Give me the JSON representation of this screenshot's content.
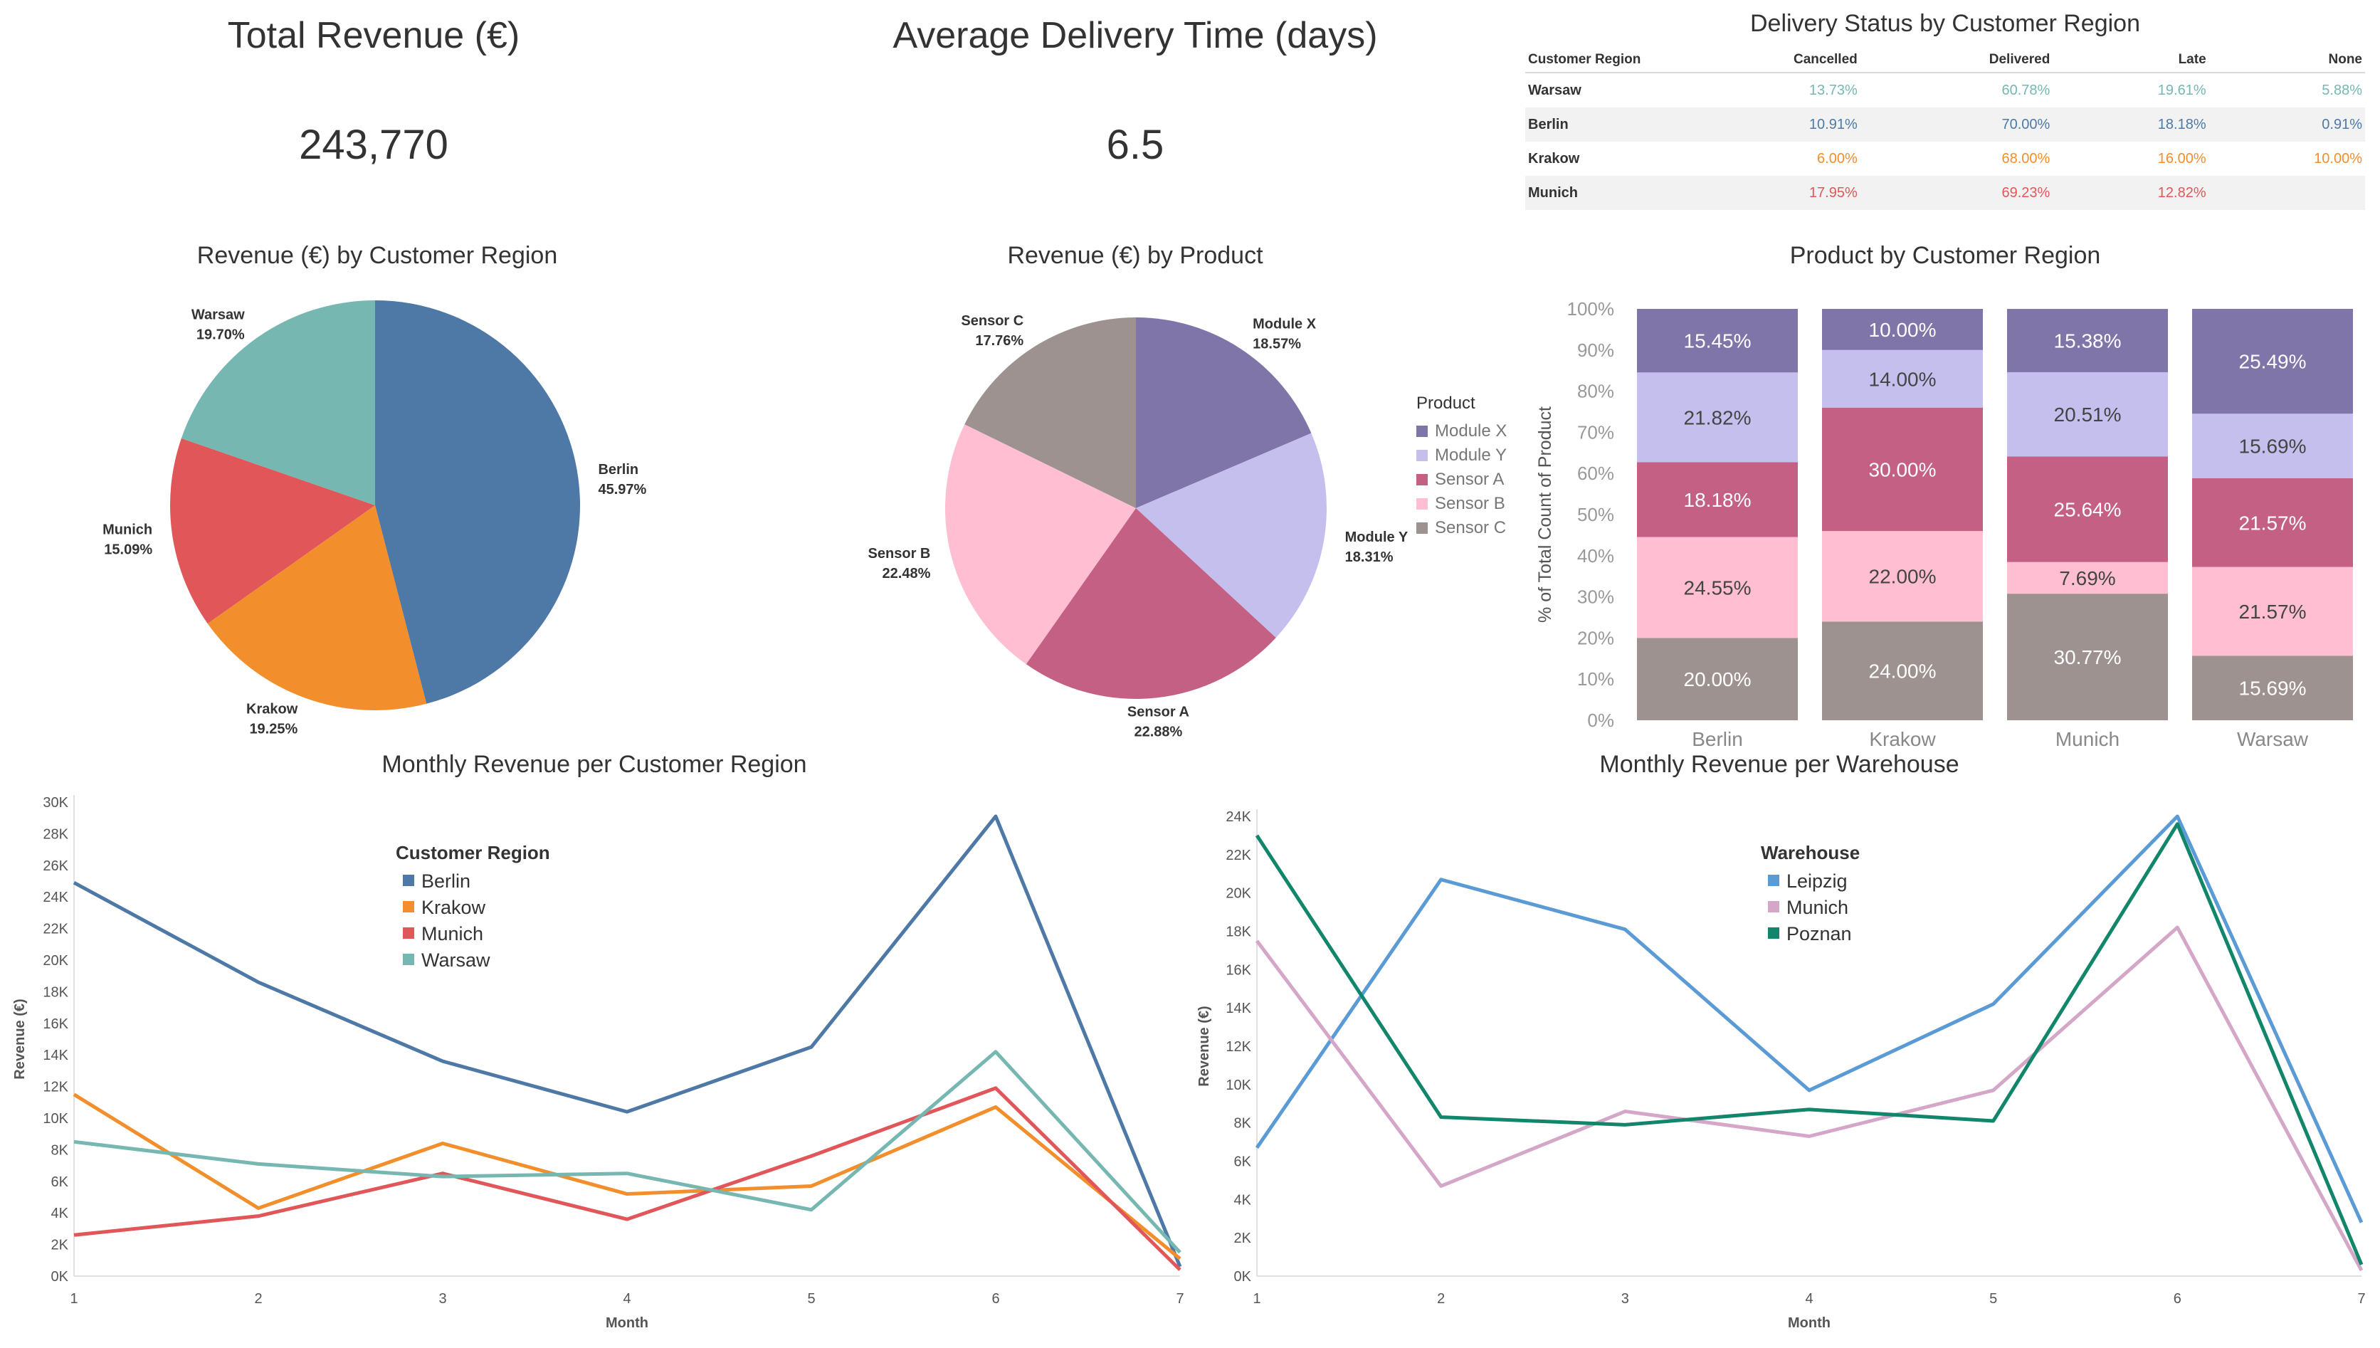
{
  "kpis": {
    "revenue": {
      "title": "Total Revenue (€)",
      "value": "243,770"
    },
    "delivery": {
      "title": "Average Delivery Time (days)",
      "value": "6.5"
    }
  },
  "delivery_table": {
    "title": "Delivery Status by Customer Region",
    "header_first": "Customer Region",
    "columns": [
      "Cancelled",
      "Delivered",
      "Late",
      "None"
    ],
    "rows": [
      {
        "region": "Warsaw",
        "color": "#76b7b2",
        "cells": [
          "13.73%",
          "60.78%",
          "19.61%",
          "5.88%"
        ]
      },
      {
        "region": "Berlin",
        "color": "#4e79a7",
        "cells": [
          "10.91%",
          "70.00%",
          "18.18%",
          "0.91%"
        ]
      },
      {
        "region": "Krakow",
        "color": "#f28e2b",
        "cells": [
          "6.00%",
          "68.00%",
          "16.00%",
          "10.00%"
        ]
      },
      {
        "region": "Munich",
        "color": "#e15759",
        "cells": [
          "17.95%",
          "69.23%",
          "12.82%",
          ""
        ]
      }
    ]
  },
  "chart_data": [
    {
      "id": "pie-region",
      "type": "pie",
      "title": "Revenue (€) by Customer Region",
      "slices": [
        {
          "label": "Berlin",
          "pct_label": "45.97%",
          "value": 45.97,
          "color": "#4e79a7"
        },
        {
          "label": "Krakow",
          "pct_label": "19.25%",
          "value": 19.25,
          "color": "#f28e2b"
        },
        {
          "label": "Munich",
          "pct_label": "15.09%",
          "value": 15.09,
          "color": "#e15759"
        },
        {
          "label": "Warsaw",
          "pct_label": "19.70%",
          "value": 19.7,
          "color": "#76b7b2"
        }
      ]
    },
    {
      "id": "pie-product",
      "type": "pie",
      "title": "Revenue (€) by Product",
      "legend_title": "Product",
      "slices": [
        {
          "label": "Module X",
          "pct_label": "18.57%",
          "value": 18.57,
          "color": "#8075a9"
        },
        {
          "label": "Module Y",
          "pct_label": "18.31%",
          "value": 18.31,
          "color": "#c5bfee"
        },
        {
          "label": "Sensor A",
          "pct_label": "22.88%",
          "value": 22.88,
          "color": "#c46084"
        },
        {
          "label": "Sensor B",
          "pct_label": "22.48%",
          "value": 22.48,
          "color": "#ffbed2"
        },
        {
          "label": "Sensor C",
          "pct_label": "17.76%",
          "value": 17.76,
          "color": "#9d928f"
        }
      ]
    },
    {
      "id": "stacked-product",
      "type": "bar",
      "stacked": true,
      "title": "Product by Customer Region",
      "ylabel": "% of Total Count of Product",
      "categories": [
        "Berlin",
        "Krakow",
        "Munich",
        "Warsaw"
      ],
      "yticks": [
        "0%",
        "10%",
        "20%",
        "30%",
        "40%",
        "50%",
        "60%",
        "70%",
        "80%",
        "90%",
        "100%"
      ],
      "ylim": [
        0,
        100
      ],
      "series": [
        {
          "name": "Sensor C",
          "color": "#9d928f",
          "values": [
            20.0,
            24.0,
            30.77,
            15.69
          ],
          "labels": [
            "20.00%",
            "24.00%",
            "30.77%",
            "15.69%"
          ]
        },
        {
          "name": "Sensor B",
          "color": "#ffbed2",
          "values": [
            24.55,
            22.0,
            7.69,
            21.57
          ],
          "labels": [
            "24.55%",
            "22.00%",
            "7.69%",
            "21.57%"
          ]
        },
        {
          "name": "Sensor A",
          "color": "#c46084",
          "values": [
            18.18,
            30.0,
            25.64,
            21.57
          ],
          "labels": [
            "18.18%",
            "30.00%",
            "25.64%",
            "21.57%"
          ]
        },
        {
          "name": "Module Y",
          "color": "#c5bfee",
          "values": [
            21.82,
            14.0,
            20.51,
            15.69
          ],
          "labels": [
            "21.82%",
            "14.00%",
            "20.51%",
            "15.69%"
          ]
        },
        {
          "name": "Module X",
          "color": "#8075a9",
          "values": [
            15.45,
            10.0,
            15.38,
            25.49
          ],
          "labels": [
            "15.45%",
            "10.00%",
            "15.38%",
            "25.49%"
          ]
        }
      ]
    },
    {
      "id": "line-region",
      "type": "line",
      "title": "Monthly Revenue per Customer Region",
      "xlabel": "Month",
      "ylabel": "Revenue (€)",
      "legend_title": "Customer Region",
      "x": [
        1,
        2,
        3,
        4,
        5,
        6,
        7
      ],
      "ylim": [
        0,
        30000
      ],
      "yticks": [
        {
          "v": 0,
          "t": "0K"
        },
        {
          "v": 2000,
          "t": "2K"
        },
        {
          "v": 4000,
          "t": "4K"
        },
        {
          "v": 6000,
          "t": "6K"
        },
        {
          "v": 8000,
          "t": "8K"
        },
        {
          "v": 10000,
          "t": "10K"
        },
        {
          "v": 12000,
          "t": "12K"
        },
        {
          "v": 14000,
          "t": "14K"
        },
        {
          "v": 16000,
          "t": "16K"
        },
        {
          "v": 18000,
          "t": "18K"
        },
        {
          "v": 20000,
          "t": "20K"
        },
        {
          "v": 22000,
          "t": "22K"
        },
        {
          "v": 24000,
          "t": "24K"
        },
        {
          "v": 26000,
          "t": "26K"
        },
        {
          "v": 28000,
          "t": "28K"
        },
        {
          "v": 30000,
          "t": "30K"
        }
      ],
      "series": [
        {
          "name": "Berlin",
          "color": "#4e79a7",
          "values": [
            24900,
            18600,
            13600,
            10400,
            14500,
            29100,
            600
          ]
        },
        {
          "name": "Krakow",
          "color": "#f28e2b",
          "values": [
            11500,
            4300,
            8400,
            5200,
            5700,
            10700,
            1100
          ]
        },
        {
          "name": "Munich",
          "color": "#e15759",
          "values": [
            2600,
            3800,
            6500,
            3600,
            7600,
            11900,
            400
          ]
        },
        {
          "name": "Warsaw",
          "color": "#76b7b2",
          "values": [
            8500,
            7100,
            6300,
            6500,
            4200,
            14200,
            1500
          ]
        }
      ]
    },
    {
      "id": "line-warehouse",
      "type": "line",
      "title": "Monthly Revenue per Warehouse",
      "xlabel": "Month",
      "ylabel": "Revenue (€)",
      "legend_title": "Warehouse",
      "x": [
        1,
        2,
        3,
        4,
        5,
        6,
        7
      ],
      "ylim": [
        0,
        24000
      ],
      "yticks": [
        {
          "v": 0,
          "t": "0K"
        },
        {
          "v": 2000,
          "t": "2K"
        },
        {
          "v": 4000,
          "t": "4K"
        },
        {
          "v": 6000,
          "t": "6K"
        },
        {
          "v": 8000,
          "t": "8K"
        },
        {
          "v": 10000,
          "t": "10K"
        },
        {
          "v": 12000,
          "t": "12K"
        },
        {
          "v": 14000,
          "t": "14K"
        },
        {
          "v": 16000,
          "t": "16K"
        },
        {
          "v": 18000,
          "t": "18K"
        },
        {
          "v": 20000,
          "t": "20K"
        },
        {
          "v": 22000,
          "t": "22K"
        },
        {
          "v": 24000,
          "t": "24K"
        }
      ],
      "series": [
        {
          "name": "Leipzig",
          "color": "#5b9bd5",
          "values": [
            6700,
            20700,
            18100,
            9700,
            14200,
            24000,
            2800
          ]
        },
        {
          "name": "Munich",
          "color": "#d4a6c8",
          "values": [
            17500,
            4700,
            8600,
            7300,
            9700,
            18200,
            300
          ]
        },
        {
          "name": "Poznan",
          "color": "#12866b",
          "values": [
            23000,
            8300,
            7900,
            8700,
            8100,
            23600,
            600
          ]
        }
      ]
    }
  ]
}
